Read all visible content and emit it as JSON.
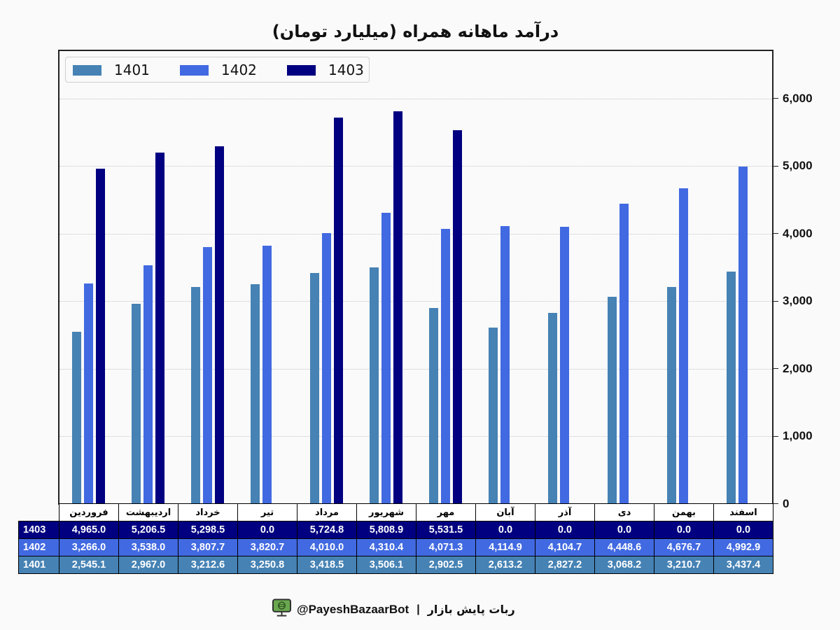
{
  "title": "درآمد ماهانه همراه (میلیارد تومان)",
  "legend": {
    "items": [
      {
        "label": "1401",
        "color": "#4682B4"
      },
      {
        "label": "1402",
        "color": "#4169E1"
      },
      {
        "label": "1403",
        "color": "#000080"
      }
    ]
  },
  "y_axis": {
    "position": "right",
    "tick_values": [
      0,
      1000,
      2000,
      3000,
      4000,
      5000,
      6000
    ],
    "tick_labels": [
      "0",
      "1,000",
      "2,000",
      "3,000",
      "4,000",
      "5,000",
      "6,000"
    ]
  },
  "table": {
    "columns": [
      "فروردین",
      "اردیبهشت",
      "خرداد",
      "تیر",
      "مرداد",
      "شهریور",
      "مهر",
      "آبان",
      "آذر",
      "دی",
      "بهمن",
      "اسفند"
    ],
    "rows": [
      {
        "label": "1403",
        "color": "#000080",
        "values": [
          "4,965.0",
          "5,206.5",
          "5,298.5",
          "0.0",
          "5,724.8",
          "5,808.9",
          "5,531.5",
          "0.0",
          "0.0",
          "0.0",
          "0.0",
          "0.0"
        ]
      },
      {
        "label": "1402",
        "color": "#4169E1",
        "values": [
          "3,266.0",
          "3,538.0",
          "3,807.7",
          "3,820.7",
          "4,010.0",
          "4,310.4",
          "4,071.3",
          "4,114.9",
          "4,104.7",
          "4,448.6",
          "4,676.7",
          "4,992.9"
        ]
      },
      {
        "label": "1401",
        "color": "#4682B4",
        "values": [
          "2,545.1",
          "2,967.0",
          "3,212.6",
          "3,250.8",
          "3,418.5",
          "3,506.1",
          "2,902.5",
          "2,613.2",
          "2,827.2",
          "3,068.2",
          "3,210.7",
          "3,437.4"
        ]
      }
    ]
  },
  "footer": {
    "icon": "monitor-bot-icon",
    "handle": "@PayeshBazaarBot",
    "separator": "|",
    "name": "ربات پایش بازار"
  },
  "chart_data": {
    "type": "bar",
    "title": "درآمد ماهانه همراه (میلیارد تومان)",
    "xlabel": "",
    "ylabel": "",
    "categories": [
      "فروردین",
      "اردیبهشت",
      "خرداد",
      "تیر",
      "مرداد",
      "شهریور",
      "مهر",
      "آبان",
      "آذر",
      "دی",
      "بهمن",
      "اسفند"
    ],
    "series": [
      {
        "name": "1401",
        "color": "#4682B4",
        "values": [
          2545.1,
          2967.0,
          3212.6,
          3250.8,
          3418.5,
          3506.1,
          2902.5,
          2613.2,
          2827.2,
          3068.2,
          3210.7,
          3437.4
        ]
      },
      {
        "name": "1402",
        "color": "#4169E1",
        "values": [
          3266.0,
          3538.0,
          3807.7,
          3820.7,
          4010.0,
          4310.4,
          4071.3,
          4114.9,
          4104.7,
          4448.6,
          4676.7,
          4992.9
        ]
      },
      {
        "name": "1403",
        "color": "#000080",
        "values": [
          4965.0,
          5206.5,
          5298.5,
          0.0,
          5724.8,
          5808.9,
          5531.5,
          0.0,
          0.0,
          0.0,
          0.0,
          0.0
        ]
      }
    ],
    "ylim": [
      0,
      6715
    ],
    "yticks": [
      0,
      1000,
      2000,
      3000,
      4000,
      5000,
      6000
    ],
    "grid": {
      "y": true,
      "style": "dotted"
    },
    "legend_position": "upper left",
    "y_axis_side": "right",
    "table_below": true
  }
}
